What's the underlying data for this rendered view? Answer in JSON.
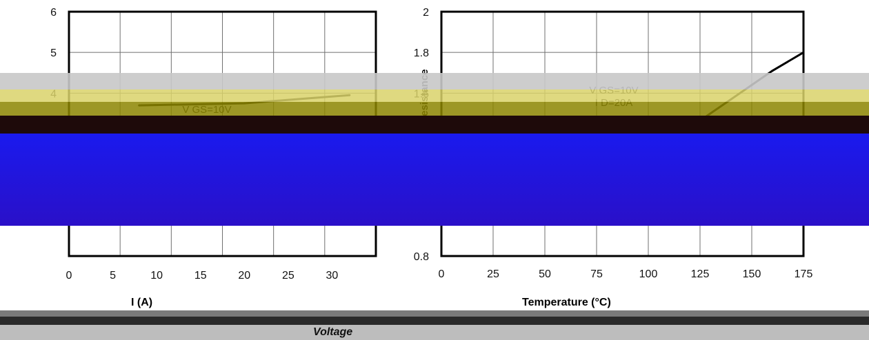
{
  "chart_data": [
    {
      "type": "line",
      "title": "",
      "xlabel": "I  (A)",
      "ylabel": "",
      "xlim": [
        0,
        35
      ],
      "ylim": [
        0,
        6
      ],
      "x_ticks": [
        "0",
        "5",
        "10",
        "15",
        "20",
        "25",
        "30"
      ],
      "y_ticks": [
        "4",
        "5",
        "6"
      ],
      "annotations": [
        "V GS=10V"
      ],
      "series": [
        {
          "x": [
            8,
            20,
            32
          ],
          "values": [
            3.7,
            3.75,
            3.95
          ]
        }
      ]
    },
    {
      "type": "line",
      "title": "",
      "xlabel": "Temperature (°C)",
      "ylabel": "Resistance",
      "xlim": [
        0,
        175
      ],
      "ylim": [
        0.8,
        2.0
      ],
      "x_ticks": [
        "0",
        "25",
        "50",
        "75",
        "100",
        "125",
        "150",
        "175"
      ],
      "y_ticks": [
        "0.8",
        "1.6",
        "1.8",
        "2"
      ],
      "annotations": [
        "V GS=10V",
        "I D=20A"
      ],
      "series": [
        {
          "x": [
            110,
            120,
            130,
            140,
            150,
            160,
            175
          ],
          "values": [
            1.38,
            1.43,
            1.5,
            1.57,
            1.64,
            1.71,
            1.8
          ]
        }
      ]
    }
  ],
  "bottom_label": "Voltage"
}
